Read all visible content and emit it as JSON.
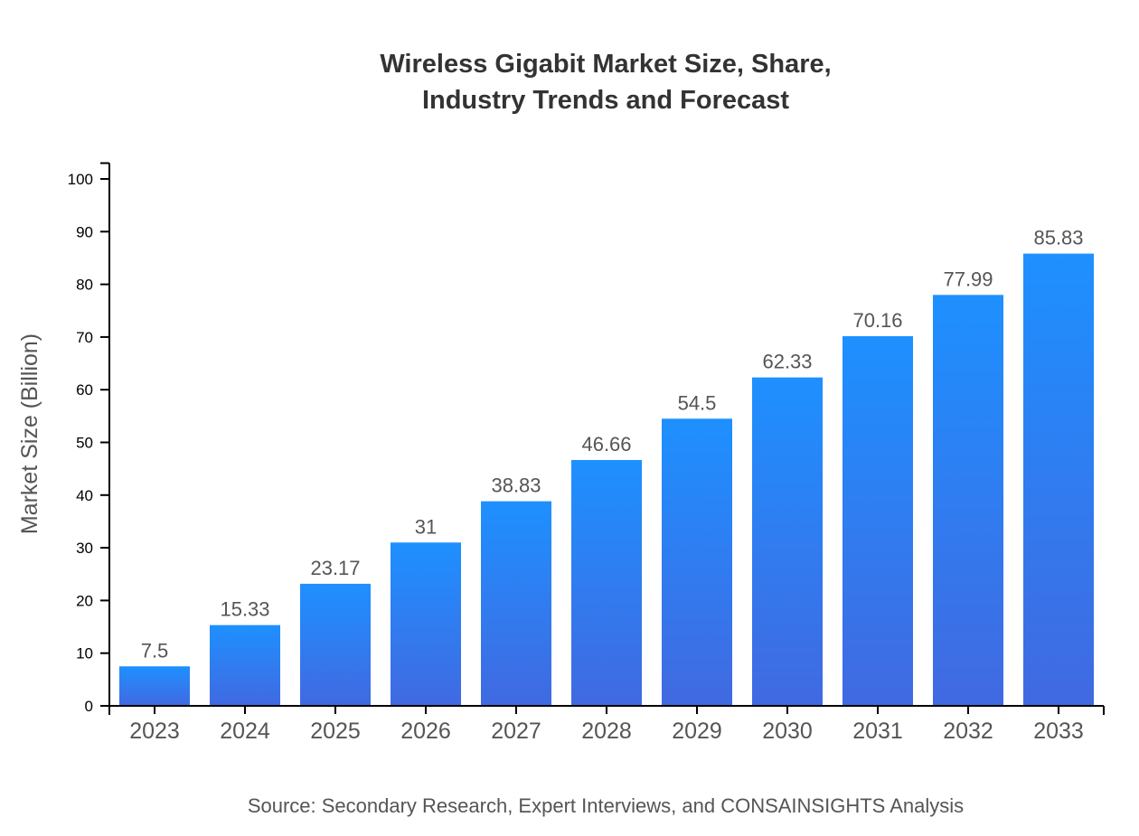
{
  "chart_data": {
    "type": "bar",
    "title_lines": [
      "Wireless Gigabit Market Size, Share,",
      "Industry Trends and Forecast"
    ],
    "xlabel": "",
    "ylabel": "Market Size (Billion)",
    "categories": [
      "2023",
      "2024",
      "2025",
      "2026",
      "2027",
      "2028",
      "2029",
      "2030",
      "2031",
      "2032",
      "2033"
    ],
    "values": [
      7.5,
      15.33,
      23.17,
      31,
      38.83,
      46.66,
      54.5,
      62.33,
      70.16,
      77.99,
      85.83
    ],
    "data_labels": [
      "7.5",
      "15.33",
      "23.17",
      "31",
      "38.83",
      "46.66",
      "54.5",
      "62.33",
      "70.16",
      "77.99",
      "85.83"
    ],
    "ylim": [
      0,
      103
    ],
    "yticks": [
      0,
      10,
      20,
      30,
      40,
      50,
      60,
      70,
      80,
      90,
      100
    ],
    "grid": false,
    "legend": "none",
    "colors": {
      "bar_top": "#1E90FF",
      "bar_bottom": "#4169E1",
      "label": "#555555",
      "title": "#333333"
    },
    "source": "Source: Secondary Research, Expert Interviews, and CONSAINSIGHTS Analysis"
  }
}
